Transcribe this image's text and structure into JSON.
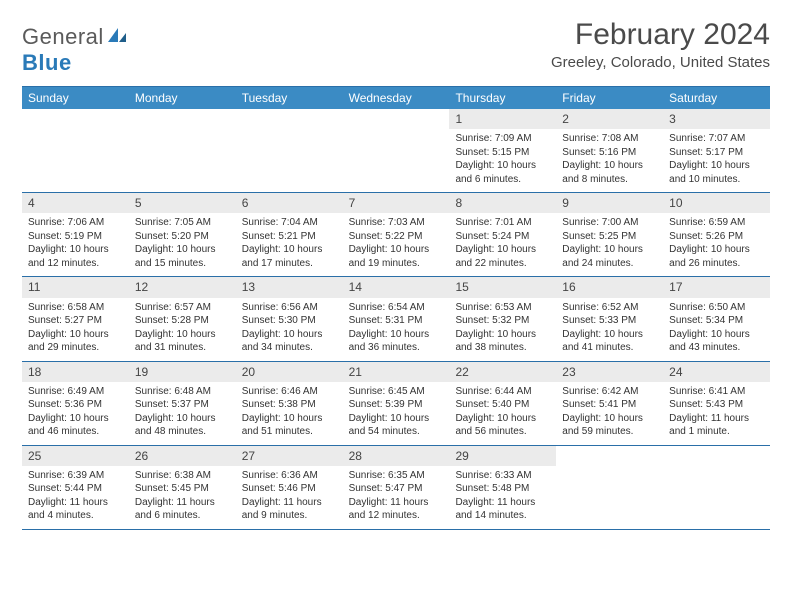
{
  "brand": {
    "line1": "General",
    "line2": "Blue"
  },
  "title": "February 2024",
  "location": "Greeley, Colorado, United States",
  "colors": {
    "header_bg": "#3b8bc4",
    "border": "#2a6fa8",
    "daynum_bg": "#ebebeb",
    "brand_blue": "#2a7ab8",
    "brand_gray": "#5a5a5a"
  },
  "day_names": [
    "Sunday",
    "Monday",
    "Tuesday",
    "Wednesday",
    "Thursday",
    "Friday",
    "Saturday"
  ],
  "weeks": [
    [
      null,
      null,
      null,
      null,
      {
        "n": "1",
        "sr": "7:09 AM",
        "ss": "5:15 PM",
        "dl": "10 hours and 6 minutes."
      },
      {
        "n": "2",
        "sr": "7:08 AM",
        "ss": "5:16 PM",
        "dl": "10 hours and 8 minutes."
      },
      {
        "n": "3",
        "sr": "7:07 AM",
        "ss": "5:17 PM",
        "dl": "10 hours and 10 minutes."
      }
    ],
    [
      {
        "n": "4",
        "sr": "7:06 AM",
        "ss": "5:19 PM",
        "dl": "10 hours and 12 minutes."
      },
      {
        "n": "5",
        "sr": "7:05 AM",
        "ss": "5:20 PM",
        "dl": "10 hours and 15 minutes."
      },
      {
        "n": "6",
        "sr": "7:04 AM",
        "ss": "5:21 PM",
        "dl": "10 hours and 17 minutes."
      },
      {
        "n": "7",
        "sr": "7:03 AM",
        "ss": "5:22 PM",
        "dl": "10 hours and 19 minutes."
      },
      {
        "n": "8",
        "sr": "7:01 AM",
        "ss": "5:24 PM",
        "dl": "10 hours and 22 minutes."
      },
      {
        "n": "9",
        "sr": "7:00 AM",
        "ss": "5:25 PM",
        "dl": "10 hours and 24 minutes."
      },
      {
        "n": "10",
        "sr": "6:59 AM",
        "ss": "5:26 PM",
        "dl": "10 hours and 26 minutes."
      }
    ],
    [
      {
        "n": "11",
        "sr": "6:58 AM",
        "ss": "5:27 PM",
        "dl": "10 hours and 29 minutes."
      },
      {
        "n": "12",
        "sr": "6:57 AM",
        "ss": "5:28 PM",
        "dl": "10 hours and 31 minutes."
      },
      {
        "n": "13",
        "sr": "6:56 AM",
        "ss": "5:30 PM",
        "dl": "10 hours and 34 minutes."
      },
      {
        "n": "14",
        "sr": "6:54 AM",
        "ss": "5:31 PM",
        "dl": "10 hours and 36 minutes."
      },
      {
        "n": "15",
        "sr": "6:53 AM",
        "ss": "5:32 PM",
        "dl": "10 hours and 38 minutes."
      },
      {
        "n": "16",
        "sr": "6:52 AM",
        "ss": "5:33 PM",
        "dl": "10 hours and 41 minutes."
      },
      {
        "n": "17",
        "sr": "6:50 AM",
        "ss": "5:34 PM",
        "dl": "10 hours and 43 minutes."
      }
    ],
    [
      {
        "n": "18",
        "sr": "6:49 AM",
        "ss": "5:36 PM",
        "dl": "10 hours and 46 minutes."
      },
      {
        "n": "19",
        "sr": "6:48 AM",
        "ss": "5:37 PM",
        "dl": "10 hours and 48 minutes."
      },
      {
        "n": "20",
        "sr": "6:46 AM",
        "ss": "5:38 PM",
        "dl": "10 hours and 51 minutes."
      },
      {
        "n": "21",
        "sr": "6:45 AM",
        "ss": "5:39 PM",
        "dl": "10 hours and 54 minutes."
      },
      {
        "n": "22",
        "sr": "6:44 AM",
        "ss": "5:40 PM",
        "dl": "10 hours and 56 minutes."
      },
      {
        "n": "23",
        "sr": "6:42 AM",
        "ss": "5:41 PM",
        "dl": "10 hours and 59 minutes."
      },
      {
        "n": "24",
        "sr": "6:41 AM",
        "ss": "5:43 PM",
        "dl": "11 hours and 1 minute."
      }
    ],
    [
      {
        "n": "25",
        "sr": "6:39 AM",
        "ss": "5:44 PM",
        "dl": "11 hours and 4 minutes."
      },
      {
        "n": "26",
        "sr": "6:38 AM",
        "ss": "5:45 PM",
        "dl": "11 hours and 6 minutes."
      },
      {
        "n": "27",
        "sr": "6:36 AM",
        "ss": "5:46 PM",
        "dl": "11 hours and 9 minutes."
      },
      {
        "n": "28",
        "sr": "6:35 AM",
        "ss": "5:47 PM",
        "dl": "11 hours and 12 minutes."
      },
      {
        "n": "29",
        "sr": "6:33 AM",
        "ss": "5:48 PM",
        "dl": "11 hours and 14 minutes."
      },
      null,
      null
    ]
  ],
  "labels": {
    "sunrise": "Sunrise: ",
    "sunset": "Sunset: ",
    "daylight": "Daylight: "
  }
}
